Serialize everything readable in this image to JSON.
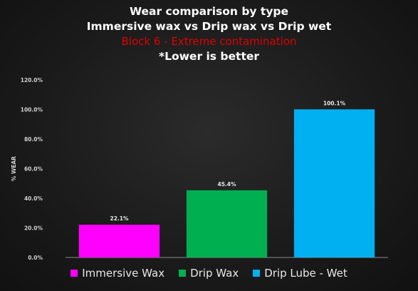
{
  "chart_data": {
    "type": "bar",
    "title_lines": [
      "Wear comparison by type",
      "Immersive wax vs Drip wax vs Drip wet",
      "Block 6 - Extreme contamination",
      "*Lower is better"
    ],
    "ylabel": "% WEAR",
    "ylim": [
      0,
      120
    ],
    "yticks": [
      "0.0%",
      "20.0%",
      "40.0%",
      "60.0%",
      "80.0%",
      "100.0%",
      "120.0%"
    ],
    "categories": [
      "Immersive Wax",
      "Drip Wax",
      "Drip Lube - Wet"
    ],
    "values": [
      22.1,
      45.4,
      100.1
    ],
    "data_labels": [
      "22.1%",
      "45.4%",
      "100.1%"
    ],
    "colors": [
      "#ff00ff",
      "#00b050",
      "#00b0f0"
    ],
    "title_colors": [
      "#ffffff",
      "#ffffff",
      "#e00000",
      "#ffffff"
    ],
    "legend_position": "bottom",
    "grid": false
  }
}
